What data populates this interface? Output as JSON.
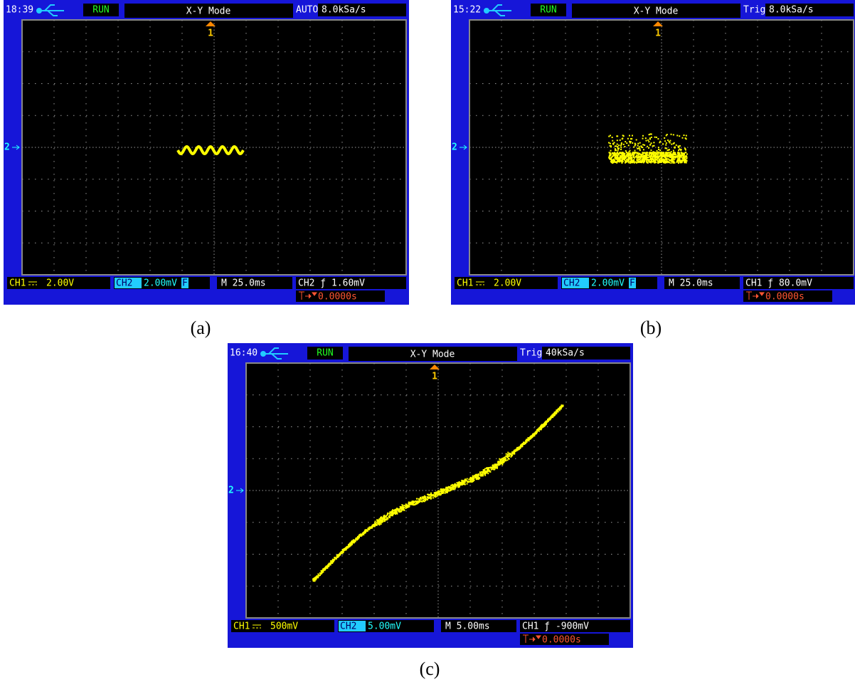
{
  "panels": [
    {
      "caption": "(a)",
      "time": "18:39",
      "status": "RUN",
      "mode": "X-Y Mode",
      "trigger_status": "AUTO",
      "sample_rate": "8.0kSa/s",
      "ch1_marker": "1",
      "ch2_marker": "2",
      "ch1": "CH1",
      "ch1_scale": "2.00V",
      "ch2": "CH2",
      "ch2_scale": "2.00mV",
      "bw_limit": "F",
      "timebase": "M 25.0ms",
      "trigger": "CH2 ƒ 1.60mV",
      "offset": "0.0000s"
    },
    {
      "caption": "(b)",
      "time": "15:22",
      "status": "RUN",
      "mode": "X-Y Mode",
      "trigger_status": "Trig'd",
      "sample_rate": "8.0kSa/s",
      "ch1_marker": "1",
      "ch2_marker": "2",
      "ch1": "CH1",
      "ch1_scale": "2.00V",
      "ch2": "CH2",
      "ch2_scale": "2.00mV",
      "bw_limit": "F",
      "timebase": "M 25.0ms",
      "trigger": "CH1 ƒ 80.0mV",
      "offset": "0.0000s"
    },
    {
      "caption": "(c)",
      "time": "16:40",
      "status": "RUN",
      "mode": "X-Y Mode",
      "trigger_status": "Trig'd",
      "sample_rate": "40kSa/s",
      "ch1_marker": "1",
      "ch2_marker": "2",
      "ch1": "CH1",
      "ch1_scale": "500mV",
      "ch2": "CH2",
      "ch2_scale": "5.00mV",
      "timebase": "M 5.00ms",
      "trigger": "CH1 ƒ -900mV",
      "offset": "0.0000s"
    }
  ]
}
